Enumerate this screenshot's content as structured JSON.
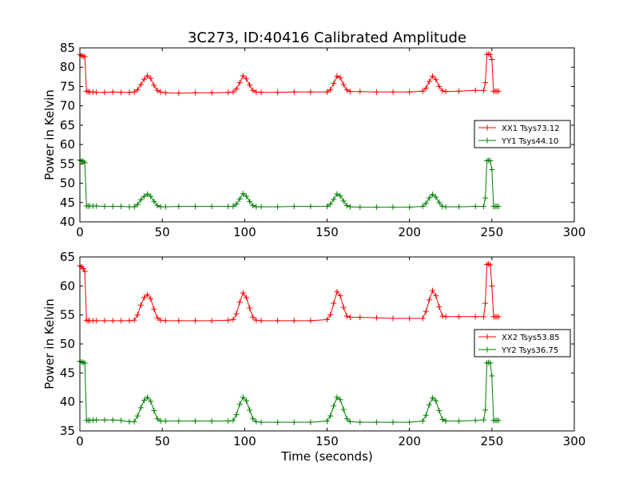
{
  "chart_data": [
    {
      "type": "line",
      "title": "3C273, ID:40416 Calibrated Amplitude",
      "xlabel": "",
      "ylabel": "Power in Kelvin",
      "xlim": [
        0,
        300
      ],
      "ylim": [
        40,
        85
      ],
      "xticks": [
        0,
        50,
        100,
        150,
        200,
        250,
        300
      ],
      "yticks": [
        40,
        45,
        50,
        55,
        60,
        65,
        70,
        75,
        80,
        85
      ],
      "legend_position": "right",
      "grid": false,
      "series": [
        {
          "name": "XX1 Tsys73.12",
          "color": "#ff0000",
          "baseline": 73.5,
          "peak": 77.8,
          "edge_high": 83.3,
          "x": [
            0,
            1,
            2,
            3,
            4,
            5,
            6,
            8,
            10,
            15,
            20,
            25,
            30,
            33,
            35,
            37,
            39,
            41,
            43,
            45,
            47,
            49,
            52,
            60,
            70,
            80,
            90,
            93,
            95,
            97,
            99,
            101,
            103,
            105,
            107,
            110,
            120,
            130,
            140,
            150,
            152,
            154,
            156,
            158,
            160,
            162,
            164,
            170,
            180,
            190,
            200,
            208,
            210,
            212,
            214,
            216,
            218,
            220,
            222,
            230,
            240,
            245,
            246,
            247,
            248,
            249,
            250,
            251,
            252,
            253,
            254
          ],
          "y": [
            83.3,
            83.0,
            82.8,
            82.7,
            73.8,
            73.7,
            73.6,
            73.6,
            73.5,
            73.5,
            73.6,
            73.5,
            73.5,
            73.6,
            74.2,
            75.5,
            76.9,
            77.8,
            77.1,
            75.3,
            74.0,
            73.6,
            73.4,
            73.3,
            73.4,
            73.4,
            73.5,
            73.6,
            74.4,
            76.0,
            77.8,
            77.0,
            75.4,
            74.0,
            73.6,
            73.5,
            73.5,
            73.6,
            73.6,
            73.6,
            74.2,
            75.8,
            77.7,
            77.3,
            75.5,
            74.1,
            73.7,
            73.7,
            73.6,
            73.6,
            73.6,
            73.8,
            74.6,
            76.3,
            77.7,
            76.8,
            75.0,
            73.9,
            73.7,
            73.8,
            74.0,
            74.0,
            76.0,
            83.3,
            83.4,
            83.3,
            82.0,
            73.8,
            73.8,
            73.8,
            73.8
          ]
        },
        {
          "name": "YY1 Tsys44.10",
          "color": "#008000",
          "baseline": 44.0,
          "peak": 47.2,
          "edge_high": 56.0,
          "x": [
            0,
            1,
            2,
            3,
            4,
            5,
            6,
            8,
            10,
            15,
            20,
            25,
            30,
            33,
            35,
            37,
            39,
            41,
            43,
            45,
            47,
            49,
            52,
            60,
            70,
            80,
            90,
            93,
            95,
            97,
            99,
            101,
            103,
            105,
            107,
            110,
            120,
            130,
            140,
            150,
            152,
            154,
            156,
            158,
            160,
            162,
            164,
            170,
            180,
            190,
            200,
            208,
            210,
            212,
            214,
            216,
            218,
            220,
            222,
            230,
            240,
            245,
            246,
            247,
            248,
            249,
            250,
            251,
            252,
            253,
            254
          ],
          "y": [
            56.0,
            55.8,
            55.6,
            55.3,
            44.1,
            44.1,
            44.1,
            44.1,
            44.1,
            44.0,
            44.0,
            44.0,
            43.9,
            43.9,
            44.5,
            45.7,
            46.6,
            47.2,
            46.6,
            45.3,
            44.2,
            43.9,
            43.9,
            44.0,
            44.0,
            44.0,
            44.0,
            44.0,
            44.6,
            45.9,
            47.3,
            46.6,
            45.3,
            44.2,
            43.9,
            43.9,
            43.9,
            44.0,
            44.0,
            44.0,
            44.6,
            45.8,
            47.2,
            46.7,
            45.4,
            44.2,
            43.9,
            43.8,
            43.8,
            43.8,
            43.8,
            44.0,
            44.8,
            46.2,
            47.1,
            46.4,
            45.0,
            44.0,
            43.9,
            43.9,
            44.0,
            44.0,
            46.2,
            55.8,
            55.9,
            55.8,
            53.5,
            44.0,
            44.0,
            44.0,
            44.0
          ]
        }
      ]
    },
    {
      "type": "line",
      "title": "",
      "xlabel": "Time (seconds)",
      "ylabel": "Power in Kelvin",
      "xlim": [
        0,
        300
      ],
      "ylim": [
        35,
        65
      ],
      "xticks": [
        0,
        50,
        100,
        150,
        200,
        250,
        300
      ],
      "yticks": [
        35,
        40,
        45,
        50,
        55,
        60,
        65
      ],
      "legend_position": "right",
      "grid": false,
      "series": [
        {
          "name": "XX2 Tsys53.85",
          "color": "#ff0000",
          "baseline": 54.1,
          "peak": 58.8,
          "edge_high": 63.5,
          "x": [
            0,
            1,
            2,
            3,
            4,
            5,
            6,
            8,
            10,
            15,
            20,
            25,
            30,
            33,
            35,
            37,
            39,
            41,
            43,
            45,
            47,
            49,
            52,
            60,
            70,
            80,
            90,
            93,
            95,
            97,
            99,
            101,
            103,
            105,
            107,
            110,
            120,
            130,
            140,
            150,
            152,
            154,
            156,
            158,
            160,
            162,
            164,
            170,
            180,
            190,
            200,
            208,
            210,
            212,
            214,
            216,
            218,
            220,
            222,
            230,
            240,
            245,
            246,
            247,
            248,
            249,
            250,
            251,
            252,
            253,
            254
          ],
          "y": [
            63.5,
            63.3,
            63.0,
            62.5,
            54.1,
            54.0,
            54.0,
            54.0,
            54.0,
            54.0,
            54.0,
            54.0,
            54.0,
            54.1,
            55.0,
            56.7,
            58.0,
            58.5,
            57.8,
            56.0,
            54.5,
            54.1,
            54.0,
            54.0,
            54.0,
            54.0,
            54.1,
            54.2,
            55.2,
            57.2,
            58.8,
            58.0,
            56.2,
            54.6,
            54.1,
            54.0,
            54.0,
            54.0,
            54.0,
            54.2,
            55.0,
            57.0,
            59.0,
            58.3,
            56.3,
            54.8,
            54.6,
            54.6,
            54.5,
            54.4,
            54.4,
            54.4,
            55.6,
            57.6,
            59.2,
            58.3,
            56.4,
            54.8,
            54.7,
            54.7,
            54.7,
            54.7,
            57.0,
            63.7,
            63.8,
            63.6,
            60.0,
            54.7,
            54.7,
            54.7,
            54.7
          ]
        },
        {
          "name": "YY2 Tsys36.75",
          "color": "#008000",
          "baseline": 36.7,
          "peak": 40.8,
          "edge_high": 47.0,
          "x": [
            0,
            1,
            2,
            3,
            4,
            5,
            6,
            8,
            10,
            15,
            20,
            25,
            30,
            33,
            35,
            37,
            39,
            41,
            43,
            45,
            47,
            49,
            52,
            60,
            70,
            80,
            90,
            93,
            95,
            97,
            99,
            101,
            103,
            105,
            107,
            110,
            120,
            130,
            140,
            150,
            152,
            154,
            156,
            158,
            160,
            162,
            164,
            170,
            180,
            190,
            200,
            208,
            210,
            212,
            214,
            216,
            218,
            220,
            222,
            230,
            240,
            245,
            246,
            247,
            248,
            249,
            250,
            251,
            252,
            253,
            254
          ],
          "y": [
            47.0,
            46.9,
            46.8,
            46.7,
            36.8,
            36.8,
            36.8,
            36.9,
            36.9,
            36.9,
            36.9,
            36.8,
            36.6,
            36.6,
            37.6,
            39.0,
            40.3,
            40.8,
            40.1,
            38.5,
            37.1,
            36.7,
            36.7,
            36.7,
            36.7,
            36.7,
            36.7,
            36.8,
            37.8,
            39.6,
            40.8,
            40.2,
            38.6,
            37.1,
            36.6,
            36.5,
            36.5,
            36.5,
            36.5,
            36.7,
            37.6,
            39.3,
            40.8,
            40.4,
            38.7,
            37.1,
            36.6,
            36.5,
            36.5,
            36.5,
            36.5,
            36.7,
            37.7,
            39.5,
            40.7,
            40.2,
            38.5,
            37.0,
            36.7,
            36.7,
            36.8,
            36.9,
            38.6,
            46.7,
            46.8,
            46.7,
            44.5,
            36.8,
            36.8,
            36.8,
            36.8
          ]
        }
      ]
    }
  ]
}
